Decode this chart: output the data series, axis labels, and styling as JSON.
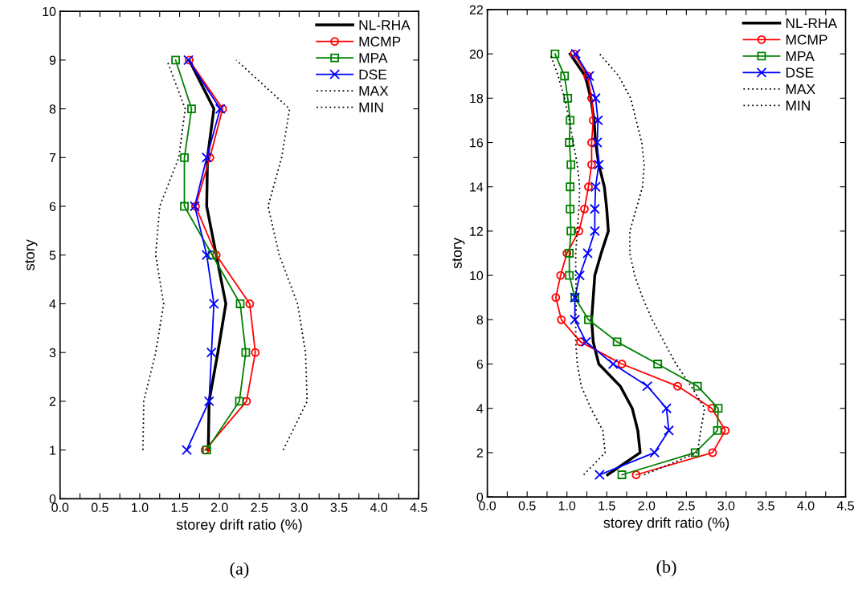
{
  "chart_data": [
    {
      "type": "line",
      "xlabel": "storey drift ratio (%)",
      "ylabel": "story",
      "legend": "top right",
      "xlim": [
        0,
        4.5
      ],
      "xticks": [
        {
          "value": 0,
          "label": "0.0"
        },
        {
          "value": 0.25,
          "label": null
        },
        {
          "value": 0.5,
          "label": "0.5"
        },
        {
          "value": 0.75,
          "label": null
        },
        {
          "value": 1.0,
          "label": "1.0"
        },
        {
          "value": 1.25,
          "label": null
        },
        {
          "value": 1.5,
          "label": "1.5"
        },
        {
          "value": 1.75,
          "label": null
        },
        {
          "value": 2.0,
          "label": "2.0"
        },
        {
          "value": 2.25,
          "label": null
        },
        {
          "value": 2.5,
          "label": "2.5"
        },
        {
          "value": 2.75,
          "label": null
        },
        {
          "value": 3.0,
          "label": "3.0"
        },
        {
          "value": 3.25,
          "label": null
        },
        {
          "value": 3.5,
          "label": "3.5"
        },
        {
          "value": 3.75,
          "label": null
        },
        {
          "value": 4.0,
          "label": "4.0"
        },
        {
          "value": 4.25,
          "label": null
        },
        {
          "value": 4.5,
          "label": "4.5"
        }
      ],
      "ylim": [
        0,
        10
      ],
      "yticks": [
        0,
        1,
        2,
        3,
        4,
        5,
        6,
        7,
        8,
        9,
        10
      ],
      "series": [
        {
          "name": "NL-RHA",
          "color": "#000000",
          "marker": "none",
          "line_style": "solid",
          "x": [
            1.86,
            1.87,
            1.98,
            2.08,
            1.96,
            1.84,
            1.85,
            1.93,
            1.62
          ],
          "values": [
            1,
            2,
            3,
            4,
            5,
            6,
            7,
            8,
            9
          ]
        },
        {
          "name": "MCMP",
          "color": "#ff0000",
          "marker": "circle",
          "line_style": "solid",
          "x": [
            1.82,
            2.34,
            2.45,
            2.38,
            1.96,
            1.7,
            1.88,
            2.04,
            1.62
          ],
          "values": [
            1,
            2,
            3,
            4,
            5,
            6,
            7,
            8,
            9
          ]
        },
        {
          "name": "MPA",
          "color": "#008000",
          "marker": "square",
          "line_style": "solid",
          "x": [
            1.84,
            2.25,
            2.33,
            2.26,
            1.91,
            1.56,
            1.56,
            1.65,
            1.45
          ],
          "values": [
            1,
            2,
            3,
            4,
            5,
            6,
            7,
            8,
            9
          ]
        },
        {
          "name": "DSE",
          "color": "#0000ff",
          "marker": "cross",
          "line_style": "solid",
          "x": [
            1.59,
            1.87,
            1.9,
            1.93,
            1.84,
            1.69,
            1.84,
            2.01,
            1.61
          ],
          "values": [
            1,
            2,
            3,
            4,
            5,
            6,
            7,
            8,
            9
          ]
        },
        {
          "name": "MAX",
          "color": "#000000",
          "marker": "none",
          "line_style": "dotted",
          "x": [
            2.8,
            3.1,
            3.08,
            2.98,
            2.75,
            2.61,
            2.78,
            2.88,
            2.21
          ],
          "values": [
            1,
            2,
            3,
            4,
            5,
            6,
            7,
            8,
            9
          ]
        },
        {
          "name": "MIN",
          "color": "#000000",
          "marker": "none",
          "line_style": "dotted",
          "x": [
            1.04,
            1.05,
            1.2,
            1.3,
            1.2,
            1.25,
            1.49,
            1.57,
            1.34
          ],
          "values": [
            1,
            2,
            3,
            4,
            5,
            6,
            7,
            8,
            9
          ]
        }
      ],
      "annotations": [
        "(a)"
      ]
    },
    {
      "type": "line",
      "xlabel": "storey drift ratio (%)",
      "ylabel": "story",
      "legend": "top right",
      "xlim": [
        0,
        4.5
      ],
      "xticks": [
        {
          "value": 0,
          "label": "0.0"
        },
        {
          "value": 0.25,
          "label": null
        },
        {
          "value": 0.5,
          "label": "0.5"
        },
        {
          "value": 0.75,
          "label": null
        },
        {
          "value": 1.0,
          "label": "1.0"
        },
        {
          "value": 1.25,
          "label": null
        },
        {
          "value": 1.5,
          "label": "1.5"
        },
        {
          "value": 1.75,
          "label": null
        },
        {
          "value": 2.0,
          "label": "2.0"
        },
        {
          "value": 2.25,
          "label": null
        },
        {
          "value": 2.5,
          "label": "2.5"
        },
        {
          "value": 2.75,
          "label": null
        },
        {
          "value": 3.0,
          "label": "3.0"
        },
        {
          "value": 3.25,
          "label": null
        },
        {
          "value": 3.5,
          "label": "3.5"
        },
        {
          "value": 3.75,
          "label": null
        },
        {
          "value": 4.0,
          "label": "4.0"
        },
        {
          "value": 4.25,
          "label": null
        },
        {
          "value": 4.5,
          "label": "4.5"
        }
      ],
      "ylim": [
        0,
        22
      ],
      "yticks": [
        0,
        2,
        4,
        6,
        8,
        10,
        12,
        14,
        16,
        18,
        20,
        22
      ],
      "series": [
        {
          "name": "NL-RHA",
          "color": "#000000",
          "marker": "none",
          "line_style": "solid",
          "x": [
            1.51,
            1.92,
            1.89,
            1.82,
            1.67,
            1.4,
            1.33,
            1.31,
            1.33,
            1.35,
            1.43,
            1.52,
            1.5,
            1.47,
            1.4,
            1.36,
            1.34,
            1.3,
            1.23,
            1.04
          ],
          "values": [
            1,
            2,
            3,
            4,
            5,
            6,
            7,
            8,
            9,
            10,
            11,
            12,
            13,
            14,
            15,
            16,
            17,
            18,
            19,
            20
          ]
        },
        {
          "name": "MCMP",
          "color": "#ff0000",
          "marker": "circle",
          "line_style": "solid",
          "x": [
            1.87,
            2.83,
            2.99,
            2.82,
            2.39,
            1.69,
            1.17,
            0.93,
            0.86,
            0.92,
            1.0,
            1.15,
            1.22,
            1.27,
            1.31,
            1.31,
            1.33,
            1.31,
            1.26,
            1.09
          ],
          "values": [
            1,
            2,
            3,
            4,
            5,
            6,
            7,
            8,
            9,
            10,
            11,
            12,
            13,
            14,
            15,
            16,
            17,
            18,
            19,
            20
          ]
        },
        {
          "name": "MPA",
          "color": "#008000",
          "marker": "square",
          "line_style": "solid",
          "x": [
            1.69,
            2.61,
            2.89,
            2.9,
            2.64,
            2.14,
            1.63,
            1.27,
            1.1,
            1.03,
            1.03,
            1.05,
            1.04,
            1.04,
            1.05,
            1.03,
            1.04,
            1.01,
            0.97,
            0.85
          ],
          "values": [
            1,
            2,
            3,
            4,
            5,
            6,
            7,
            8,
            9,
            10,
            11,
            12,
            13,
            14,
            15,
            16,
            17,
            18,
            19,
            20
          ]
        },
        {
          "name": "DSE",
          "color": "#0000ff",
          "marker": "cross",
          "line_style": "solid",
          "x": [
            1.41,
            2.1,
            2.28,
            2.25,
            2.01,
            1.58,
            1.24,
            1.1,
            1.1,
            1.16,
            1.26,
            1.35,
            1.35,
            1.36,
            1.4,
            1.38,
            1.39,
            1.36,
            1.28,
            1.11
          ],
          "values": [
            1,
            2,
            3,
            4,
            5,
            6,
            7,
            8,
            9,
            10,
            11,
            12,
            13,
            14,
            15,
            16,
            17,
            18,
            19,
            20
          ]
        },
        {
          "name": "MAX",
          "color": "#000000",
          "marker": "none",
          "line_style": "dotted",
          "x": [
            1.97,
            2.64,
            2.68,
            2.73,
            2.56,
            2.37,
            2.22,
            2.07,
            1.95,
            1.85,
            1.79,
            1.79,
            1.87,
            1.95,
            1.97,
            1.94,
            1.87,
            1.8,
            1.65,
            1.41
          ],
          "values": [
            1,
            2,
            3,
            4,
            5,
            6,
            7,
            8,
            9,
            10,
            11,
            12,
            13,
            14,
            15,
            16,
            17,
            18,
            19,
            20
          ]
        },
        {
          "name": "MIN",
          "color": "#000000",
          "marker": "none",
          "line_style": "dotted",
          "x": [
            1.21,
            1.48,
            1.45,
            1.3,
            1.18,
            1.13,
            1.11,
            1.11,
            1.12,
            1.11,
            1.11,
            1.13,
            1.15,
            1.16,
            1.13,
            1.08,
            1.03,
            0.97,
            0.89,
            0.79
          ],
          "values": [
            1,
            2,
            3,
            4,
            5,
            6,
            7,
            8,
            9,
            10,
            11,
            12,
            13,
            14,
            15,
            16,
            17,
            18,
            19,
            20
          ]
        }
      ],
      "annotations": [
        "(b)"
      ]
    }
  ]
}
